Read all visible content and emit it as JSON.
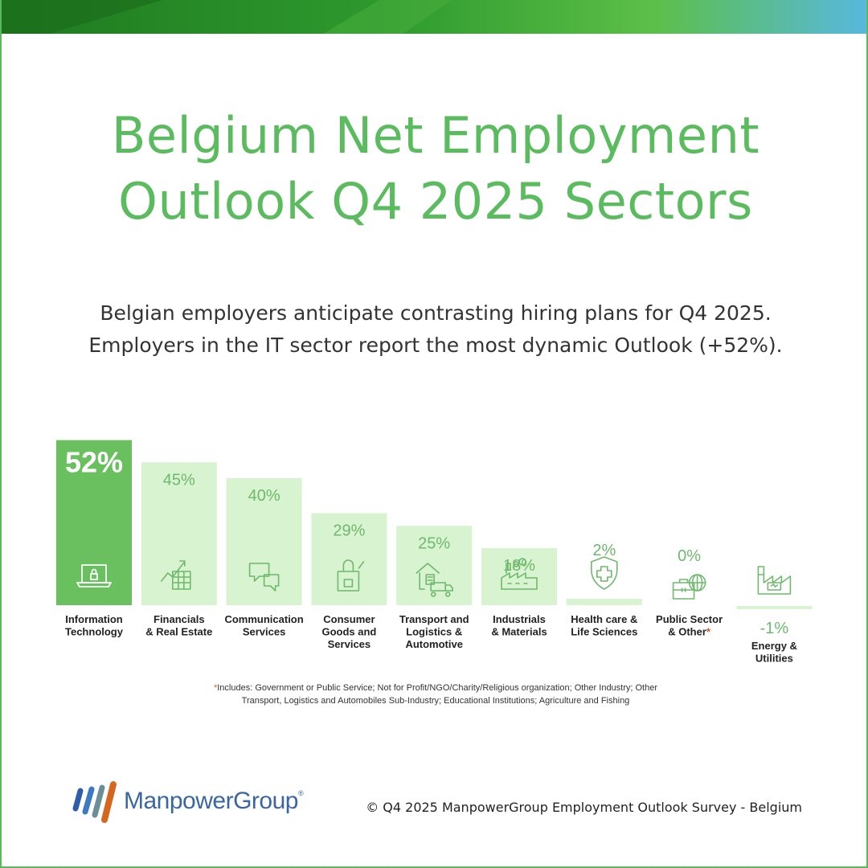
{
  "title": {
    "line1": "Belgium Net Employment",
    "line2": "Outlook Q4 2025 Sectors"
  },
  "subtitle": {
    "line1": "Belgian employers anticipate contrasting hiring plans for Q4 2025.",
    "line2": "Employers in the IT sector report the most dynamic Outlook (+52%)."
  },
  "chart_data": {
    "type": "bar",
    "categories": [
      "Information Technology",
      "Financials & Real Estate",
      "Communication Services",
      "Consumer Goods and Services",
      "Transport and Logistics & Automotive",
      "Industrials & Materials",
      "Health care & Life Sciences",
      "Public Sector & Other",
      "Energy & Utilities"
    ],
    "category_lines": [
      [
        "Information",
        "Technology"
      ],
      [
        "Financials",
        "& Real Estate"
      ],
      [
        "Communication",
        "Services"
      ],
      [
        "Consumer",
        "Goods and",
        "Services"
      ],
      [
        "Transport and",
        "Logistics &",
        "Automotive"
      ],
      [
        "Industrials",
        "& Materials"
      ],
      [
        "Health care &",
        "Life Sciences"
      ],
      [
        "Public Sector",
        "& Other*"
      ],
      [
        "Energy &",
        "Utilities"
      ]
    ],
    "values": [
      52,
      45,
      40,
      29,
      25,
      18,
      2,
      0,
      -1
    ],
    "value_labels": [
      "52%",
      "45%",
      "40%",
      "29%",
      "25%",
      "18%",
      "2%",
      "0%",
      "-1%"
    ],
    "icons": [
      "laptop-lock-icon",
      "chart-table-icon",
      "speech-bubbles-icon",
      "shopping-bag-icon",
      "truck-building-icon",
      "factory-icon",
      "health-shield-icon",
      "briefcase-globe-icon",
      "factory-energy-icon"
    ],
    "highlight_index": 0,
    "colors": {
      "highlight": "#6abf5f",
      "bar": "#d8f3d0",
      "value_text": "#6fb86d",
      "icon_stroke": "#6fb86d",
      "asterisk": "#d9541e"
    }
  },
  "footnote": {
    "asterisk": "*",
    "line1": "Includes: Government or Public Service; Not for Profit/NGO/Charity/Religious organization; Other Industry; Other",
    "line2": "Transport, Logistics and Automobiles Sub-Industry; Educational Institutions; Agriculture and Fishing"
  },
  "logo": {
    "name": "ManpowerGroup",
    "mark": "®"
  },
  "copyright": "© Q4 2025 ManpowerGroup Employment Outlook Survey - Belgium"
}
